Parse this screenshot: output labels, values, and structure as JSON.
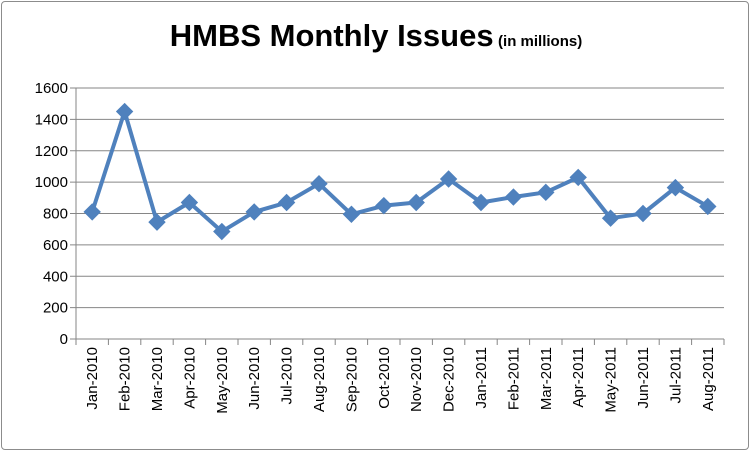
{
  "chart_data": {
    "type": "line",
    "title": "HMBS Monthly Issues",
    "subtitle": "(in millions)",
    "xlabel": "",
    "ylabel": "",
    "categories": [
      "Jan-2010",
      "Feb-2010",
      "Mar-2010",
      "Apr-2010",
      "May-2010",
      "Jun-2010",
      "Jul-2010",
      "Aug-2010",
      "Sep-2010",
      "Oct-2010",
      "Nov-2010",
      "Dec-2010",
      "Jan-2011",
      "Feb-2011",
      "Mar-2011",
      "Apr-2011",
      "May-2011",
      "Jun-2011",
      "Jul-2011",
      "Aug-2011"
    ],
    "series": [
      {
        "values": [
          810,
          1450,
          745,
          870,
          685,
          810,
          870,
          990,
          795,
          850,
          870,
          1020,
          870,
          905,
          935,
          1030,
          770,
          800,
          965,
          845
        ],
        "color": "#4f81bd",
        "marker": "diamond"
      }
    ],
    "ylim": [
      0,
      1600
    ],
    "yticks": [
      0,
      200,
      400,
      600,
      800,
      1000,
      1200,
      1400,
      1600
    ],
    "grid": "horizontal",
    "legend": "none"
  }
}
